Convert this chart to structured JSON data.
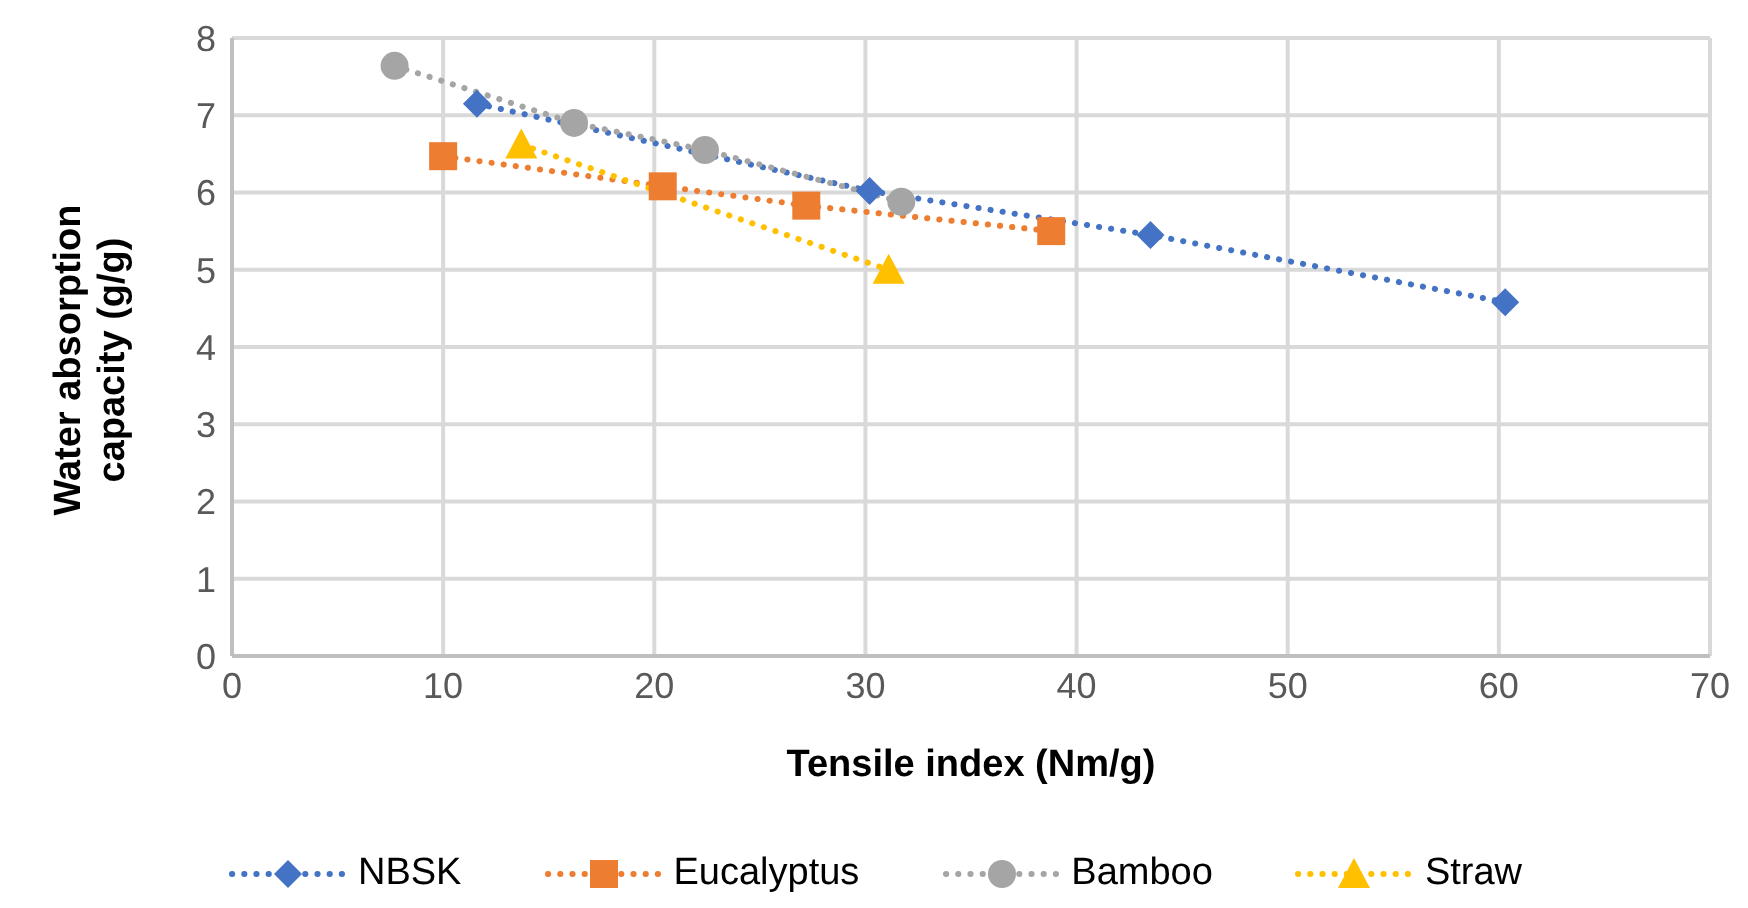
{
  "chart_data": {
    "type": "line",
    "xlabel": "Tensile index (Nm/g)",
    "ylabel": "Water absorption capacity (g/g)",
    "xlim": [
      0,
      70
    ],
    "xticks": [
      0,
      10,
      20,
      30,
      40,
      50,
      60,
      70
    ],
    "ylim": [
      0,
      8
    ],
    "yticks": [
      0,
      1,
      2,
      3,
      4,
      5,
      6,
      7,
      8
    ],
    "grid": true,
    "legend": "bottom",
    "line_style": "dotted",
    "series": [
      {
        "name": "NBSK",
        "color": "#4472c4",
        "marker": "diamond",
        "x": [
          11.6,
          30.2,
          43.5,
          60.3
        ],
        "values": [
          7.15,
          6.02,
          5.45,
          4.58
        ]
      },
      {
        "name": "Eucalyptus",
        "color": "#ed7d31",
        "marker": "square",
        "x": [
          10,
          20.4,
          27.2,
          38.8
        ],
        "values": [
          6.47,
          6.08,
          5.83,
          5.5
        ]
      },
      {
        "name": "Bamboo",
        "color": "#a5a5a5",
        "marker": "circle",
        "x": [
          7.7,
          16.2,
          22.4,
          31.7
        ],
        "values": [
          7.64,
          6.9,
          6.55,
          5.88
        ]
      },
      {
        "name": "Straw",
        "color": "#ffc000",
        "marker": "triangle",
        "x": [
          13.7,
          31.1
        ],
        "values": [
          6.62,
          5.0
        ]
      }
    ]
  }
}
